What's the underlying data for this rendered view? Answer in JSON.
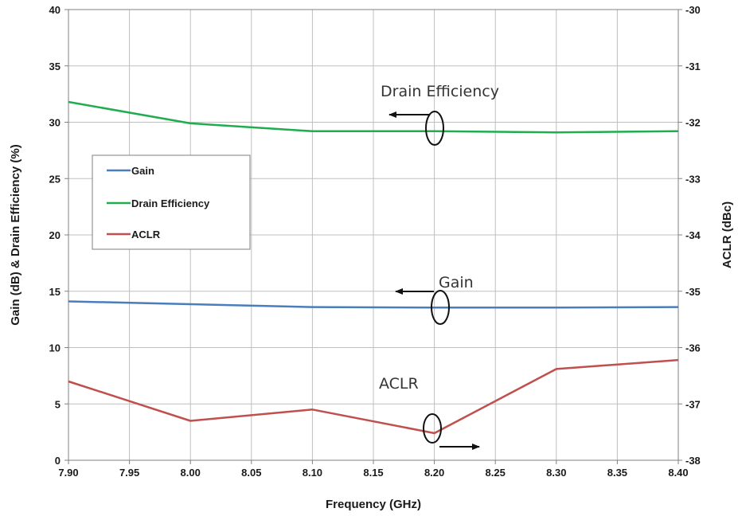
{
  "chart_data": {
    "type": "line",
    "xlabel": "Frequency (GHz)",
    "ylabel_left": "Gain (dB) & Drain Efficiency (%)",
    "ylabel_right": "ACLR (dBc)",
    "xlim": [
      7.9,
      8.4
    ],
    "ylim_left": [
      0,
      40
    ],
    "ylim_right": [
      -38,
      -30
    ],
    "x_ticks": [
      "7.90",
      "7.95",
      "8.00",
      "8.05",
      "8.10",
      "8.15",
      "8.20",
      "8.25",
      "8.30",
      "8.35",
      "8.40"
    ],
    "y_left_ticks": [
      "0",
      "5",
      "10",
      "15",
      "20",
      "25",
      "30",
      "35",
      "40"
    ],
    "y_right_ticks": [
      "-38",
      "-37",
      "-36",
      "-35",
      "-34",
      "-33",
      "-32",
      "-31",
      "-30"
    ],
    "grid": true,
    "legend_position": "middle-left",
    "series": [
      {
        "name": "Gain",
        "axis": "left",
        "color": "#4a7ebb",
        "x": [
          7.9,
          8.0,
          8.1,
          8.2,
          8.3,
          8.4
        ],
        "y": [
          14.1,
          13.85,
          13.6,
          13.55,
          13.55,
          13.6
        ]
      },
      {
        "name": "Drain Efficiency",
        "axis": "left",
        "color": "#1fad4f",
        "x": [
          7.9,
          8.0,
          8.1,
          8.2,
          8.3,
          8.4
        ],
        "y": [
          31.8,
          29.9,
          29.2,
          29.2,
          29.1,
          29.2
        ]
      },
      {
        "name": "ACLR",
        "axis": "right",
        "color": "#c0504d",
        "x": [
          7.9,
          8.0,
          8.1,
          8.2,
          8.3,
          8.4
        ],
        "y": [
          -36.6,
          -37.3,
          -37.1,
          -37.52,
          -36.38,
          -36.22
        ]
      }
    ],
    "annotations": [
      {
        "text": "Drain Efficiency",
        "series": "Drain Efficiency",
        "arrow": "left"
      },
      {
        "text": "Gain",
        "series": "Gain",
        "arrow": "left"
      },
      {
        "text": "ACLR",
        "series": "ACLR",
        "arrow": "right"
      }
    ]
  }
}
